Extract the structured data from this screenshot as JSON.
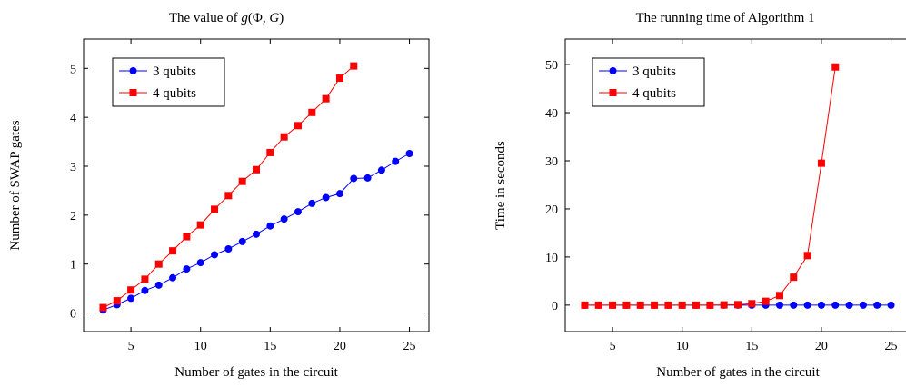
{
  "chart_data": [
    {
      "type": "line",
      "title": "The value of g(Φ, G)",
      "title_parts": {
        "prefix": "The value of ",
        "g": "g",
        "open": "(",
        "phi": "Φ",
        "comma": ", ",
        "G": "G",
        "close": ")"
      },
      "xlabel": "Number of gates in the circuit",
      "ylabel": "Number of SWAP gates",
      "xlim": [
        1.6,
        26.4
      ],
      "ylim": [
        -0.38,
        5.6
      ],
      "xticks": [
        5,
        10,
        15,
        20,
        25
      ],
      "yticks": [
        0,
        1,
        2,
        3,
        4,
        5
      ],
      "legend_position": "top-left",
      "grid": false,
      "series": [
        {
          "name": "3 qubits",
          "color": "#0000ff",
          "marker": "circle",
          "x": [
            3,
            4,
            5,
            6,
            7,
            8,
            9,
            10,
            11,
            12,
            13,
            14,
            15,
            16,
            17,
            18,
            19,
            20,
            21,
            22,
            23,
            24,
            25
          ],
          "y": [
            0.06,
            0.17,
            0.3,
            0.46,
            0.57,
            0.72,
            0.9,
            1.03,
            1.19,
            1.31,
            1.46,
            1.61,
            1.78,
            1.92,
            2.07,
            2.24,
            2.36,
            2.44,
            2.75,
            2.76,
            2.92,
            3.1,
            3.26
          ]
        },
        {
          "name": "4 qubits",
          "color": "#ff0000",
          "marker": "square",
          "x": [
            3,
            4,
            5,
            6,
            7,
            8,
            9,
            10,
            11,
            12,
            13,
            14,
            15,
            16,
            17,
            18,
            19,
            20,
            21
          ],
          "y": [
            0.11,
            0.25,
            0.47,
            0.69,
            1.0,
            1.27,
            1.56,
            1.8,
            2.12,
            2.4,
            2.69,
            2.93,
            3.28,
            3.6,
            3.83,
            4.1,
            4.38,
            4.8,
            5.05
          ]
        }
      ]
    },
    {
      "type": "line",
      "title": "The running time of Algorithm 1",
      "xlabel": "Number of gates in the circuit",
      "ylabel": "Time in seconds",
      "xlim": [
        1.6,
        26.4
      ],
      "ylim": [
        -5.5,
        55.3
      ],
      "xticks": [
        5,
        10,
        15,
        20,
        25
      ],
      "yticks": [
        0,
        10,
        20,
        30,
        40,
        50
      ],
      "legend_position": "top-left",
      "grid": false,
      "series": [
        {
          "name": "3 qubits",
          "color": "#0000ff",
          "marker": "circle",
          "x": [
            3,
            4,
            5,
            6,
            7,
            8,
            9,
            10,
            11,
            12,
            13,
            14,
            15,
            16,
            17,
            18,
            19,
            20,
            21,
            22,
            23,
            24,
            25
          ],
          "y": [
            0,
            0,
            0,
            0,
            0,
            0,
            0,
            0,
            0,
            0,
            0,
            0,
            0,
            0,
            0,
            0,
            0,
            0,
            0,
            0,
            0,
            0,
            0
          ]
        },
        {
          "name": "4 qubits",
          "color": "#ff0000",
          "marker": "square",
          "x": [
            3,
            4,
            5,
            6,
            7,
            8,
            9,
            10,
            11,
            12,
            13,
            14,
            15,
            16,
            17,
            18,
            19,
            20,
            21
          ],
          "y": [
            0,
            0,
            0,
            0,
            0,
            0,
            0,
            0,
            0,
            0,
            0.05,
            0.1,
            0.3,
            0.8,
            2.0,
            5.8,
            10.3,
            29.5,
            49.5
          ]
        }
      ]
    }
  ]
}
